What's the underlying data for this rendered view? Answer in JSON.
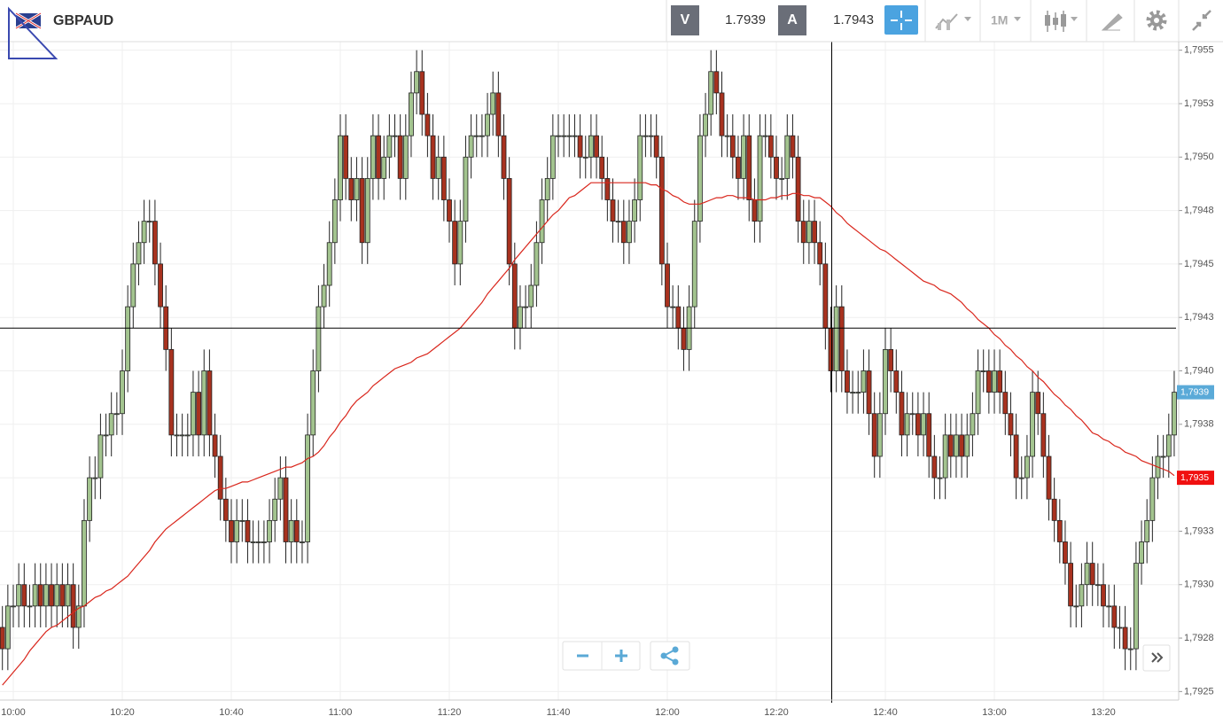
{
  "toolbar": {
    "symbol": "GBPAUD",
    "sell_label": "V",
    "sell_price": "1.7939",
    "buy_label": "A",
    "buy_price": "1.7943",
    "period": "1M"
  },
  "chart_data": {
    "type": "candlestick",
    "categories": [
      null,
      null,
      "10:00",
      null,
      null,
      null,
      null,
      null,
      null,
      null,
      null,
      null,
      null,
      null,
      null,
      null,
      null,
      null,
      null,
      null,
      null,
      null,
      "10:20",
      null,
      null,
      null,
      null,
      null,
      null,
      null,
      null,
      null,
      null,
      null,
      null,
      null,
      null,
      null,
      null,
      null,
      null,
      null,
      "10:40",
      null,
      null,
      null,
      null,
      null,
      null,
      null,
      null,
      null,
      null,
      null,
      null,
      null,
      null,
      null,
      null,
      null,
      null,
      null,
      "11:00",
      null,
      null,
      null,
      null,
      null,
      null,
      null,
      null,
      null,
      null,
      null,
      null,
      null,
      null,
      null,
      null,
      null,
      null,
      null,
      "11:20",
      null,
      null,
      null,
      null,
      null,
      null,
      null,
      null,
      null,
      null,
      null,
      null,
      null,
      null,
      null,
      null,
      null,
      null,
      null,
      "11:40",
      null,
      null,
      null,
      null,
      null,
      null,
      null,
      null,
      null,
      null,
      null,
      null,
      null,
      null,
      null,
      null,
      null,
      null,
      null,
      "12:00",
      null,
      null,
      null,
      null,
      null,
      null,
      null,
      null,
      null,
      null,
      null,
      null,
      null,
      null,
      null,
      null,
      null,
      null,
      null,
      "12:20",
      null,
      null,
      null,
      null,
      null,
      null,
      null,
      null,
      null,
      null,
      null,
      null,
      null,
      null,
      null,
      null,
      null,
      null,
      null,
      "12:40",
      null,
      null,
      null,
      null,
      null,
      null,
      null,
      null,
      null,
      null,
      null,
      null,
      null,
      null,
      null,
      null,
      null,
      null,
      null,
      "13:00",
      null,
      null,
      null,
      null,
      null,
      null,
      null,
      null,
      null,
      null,
      null,
      null,
      null,
      null,
      null,
      null,
      null,
      null,
      null,
      "13:20",
      null,
      null,
      null,
      null,
      null,
      null,
      null,
      null,
      null,
      null,
      null,
      null,
      null
    ],
    "open": [
      1.7928,
      1.7927,
      1.7929,
      1.7929,
      1.793,
      1.7929,
      1.7929,
      1.793,
      1.7929,
      1.793,
      1.7929,
      1.793,
      1.7929,
      1.793,
      1.7928,
      1.7929,
      1.7933,
      1.7935,
      1.7935,
      1.7937,
      1.7937,
      1.7938,
      1.7938,
      1.794,
      1.7943,
      1.7945,
      1.7946,
      1.7947,
      1.7947,
      1.7945,
      1.7943,
      1.7941,
      1.7937,
      1.7937,
      1.7937,
      1.7937,
      1.7939,
      1.7937,
      1.794,
      1.7937,
      1.7936,
      1.7934,
      1.7933,
      1.7932,
      1.7933,
      1.7933,
      1.7932,
      1.7932,
      1.7932,
      1.7932,
      1.7933,
      1.7934,
      1.7935,
      1.7932,
      1.7933,
      1.7932,
      1.7932,
      1.7937,
      1.794,
      1.7943,
      1.7944,
      1.7946,
      1.7948,
      1.7951,
      1.7949,
      1.7948,
      1.7949,
      1.7946,
      1.7949,
      1.7951,
      1.7949,
      1.795,
      1.7951,
      1.7951,
      1.7949,
      1.7951,
      1.7953,
      1.7954,
      1.7952,
      1.7951,
      1.7949,
      1.795,
      1.7948,
      1.7947,
      1.7945,
      1.7947,
      1.795,
      1.7951,
      1.7951,
      1.7951,
      1.7952,
      1.7953,
      1.7951,
      1.7949,
      1.7945,
      1.7942,
      1.7943,
      1.7943,
      1.7944,
      1.7946,
      1.7948,
      1.7949,
      1.7951,
      1.7951,
      1.7951,
      1.7951,
      1.7951,
      1.795,
      1.795,
      1.7951,
      1.795,
      1.7949,
      1.7948,
      1.7947,
      1.7947,
      1.7946,
      1.7947,
      1.7948,
      1.7951,
      1.7951,
      1.7951,
      1.795,
      1.7945,
      1.7943,
      1.7943,
      1.7942,
      1.7941,
      1.7943,
      1.7947,
      1.7951,
      1.7952,
      1.7954,
      1.7953,
      1.7951,
      1.7951,
      1.795,
      1.7949,
      1.7951,
      1.7948,
      1.7947,
      1.7951,
      1.7951,
      1.795,
      1.7949,
      1.7949,
      1.7951,
      1.795,
      1.7947,
      1.7946,
      1.7947,
      1.7946,
      1.7945,
      1.7942,
      1.794,
      1.7943,
      1.794,
      1.7939,
      1.7939,
      1.7939,
      1.794,
      1.7938,
      1.7936,
      1.7938,
      1.7941,
      1.794,
      1.7939,
      1.7937,
      1.7938,
      1.7938,
      1.7937,
      1.7938,
      1.7936,
      1.7935,
      1.7935,
      1.7937,
      1.7936,
      1.7937,
      1.7936,
      1.7937,
      1.7938,
      1.794,
      1.794,
      1.7939,
      1.794,
      1.7939,
      1.7938,
      1.7937,
      1.7935,
      1.7935,
      1.7936,
      1.7939,
      1.7938,
      1.7936,
      1.7934,
      1.7933,
      1.7932,
      1.7931,
      1.7929,
      1.7929,
      1.793,
      1.7931,
      1.793,
      1.793,
      1.7929,
      1.7929,
      1.7928,
      1.7928,
      1.7927,
      1.7927,
      1.7931,
      1.7932,
      1.7933,
      1.7935,
      1.7936,
      1.7936,
      1.7937
    ],
    "high": [
      1.7929,
      1.793,
      1.793,
      1.7931,
      1.7931,
      1.793,
      1.7931,
      1.7931,
      1.7931,
      1.7931,
      1.7931,
      1.7931,
      1.7931,
      1.7931,
      1.793,
      1.7934,
      1.7936,
      1.7936,
      1.7938,
      1.7938,
      1.7939,
      1.7939,
      1.7941,
      1.7944,
      1.7946,
      1.7947,
      1.7948,
      1.7948,
      1.7948,
      1.7946,
      1.7944,
      1.7942,
      1.7938,
      1.7938,
      1.7938,
      1.794,
      1.794,
      1.7941,
      1.7941,
      1.7938,
      1.7937,
      1.7935,
      1.7934,
      1.7934,
      1.7934,
      1.7934,
      1.7933,
      1.7933,
      1.7933,
      1.7934,
      1.7935,
      1.7936,
      1.7936,
      1.7934,
      1.7934,
      1.7933,
      1.7938,
      1.7941,
      1.7944,
      1.7945,
      1.7947,
      1.7949,
      1.7952,
      1.7952,
      1.795,
      1.795,
      1.795,
      1.795,
      1.7952,
      1.7952,
      1.7951,
      1.7952,
      1.7952,
      1.7952,
      1.7952,
      1.7954,
      1.7955,
      1.7955,
      1.7953,
      1.7952,
      1.7951,
      1.7951,
      1.7949,
      1.7948,
      1.7948,
      1.7951,
      1.7952,
      1.7952,
      1.7952,
      1.7953,
      1.7954,
      1.7954,
      1.7952,
      1.795,
      1.7946,
      1.7944,
      1.7944,
      1.7945,
      1.7947,
      1.7949,
      1.795,
      1.7952,
      1.7952,
      1.7952,
      1.7952,
      1.7952,
      1.7952,
      1.7951,
      1.7952,
      1.7952,
      1.7951,
      1.795,
      1.7949,
      1.7948,
      1.7948,
      1.7948,
      1.7949,
      1.7952,
      1.7952,
      1.7952,
      1.7952,
      1.7951,
      1.7946,
      1.7944,
      1.7944,
      1.7943,
      1.7944,
      1.7948,
      1.7952,
      1.7953,
      1.7955,
      1.7955,
      1.7954,
      1.7952,
      1.7952,
      1.7951,
      1.7952,
      1.7952,
      1.7949,
      1.7952,
      1.7952,
      1.7952,
      1.7951,
      1.795,
      1.7952,
      1.7952,
      1.7951,
      1.7948,
      1.7948,
      1.7948,
      1.7947,
      1.7946,
      1.7943,
      1.7944,
      1.7944,
      1.7941,
      1.794,
      1.794,
      1.7941,
      1.7941,
      1.7939,
      1.7939,
      1.7942,
      1.7942,
      1.7941,
      1.794,
      1.7939,
      1.7939,
      1.7939,
      1.7939,
      1.7939,
      1.7937,
      1.7936,
      1.7938,
      1.7938,
      1.7938,
      1.7938,
      1.7938,
      1.7939,
      1.7941,
      1.7941,
      1.7941,
      1.7941,
      1.7941,
      1.794,
      1.7939,
      1.7938,
      1.7936,
      1.7937,
      1.794,
      1.794,
      1.7939,
      1.7937,
      1.7935,
      1.7934,
      1.7933,
      1.7932,
      1.793,
      1.7931,
      1.7932,
      1.7932,
      1.7931,
      1.7931,
      1.793,
      1.793,
      1.7929,
      1.7929,
      1.7928,
      1.7932,
      1.7933,
      1.7934,
      1.7936,
      1.7937,
      1.7937,
      1.7938,
      1.794
    ],
    "low": [
      1.7926,
      1.7926,
      1.7928,
      1.7928,
      1.7928,
      1.7928,
      1.7928,
      1.7928,
      1.7928,
      1.7928,
      1.7928,
      1.7928,
      1.7928,
      1.7927,
      1.7927,
      1.7928,
      1.7932,
      1.7934,
      1.7934,
      1.7936,
      1.7936,
      1.7937,
      1.7937,
      1.7939,
      1.7942,
      1.7944,
      1.7945,
      1.7946,
      1.7944,
      1.7942,
      1.794,
      1.7936,
      1.7936,
      1.7936,
      1.7936,
      1.7936,
      1.7936,
      1.7936,
      1.7936,
      1.7935,
      1.7933,
      1.7932,
      1.7931,
      1.7931,
      1.7932,
      1.7931,
      1.7931,
      1.7931,
      1.7931,
      1.7931,
      1.7932,
      1.7933,
      1.7931,
      1.7931,
      1.7931,
      1.7931,
      1.7931,
      1.7936,
      1.7939,
      1.7942,
      1.7943,
      1.7945,
      1.7947,
      1.7948,
      1.7947,
      1.7947,
      1.7945,
      1.7945,
      1.7948,
      1.7948,
      1.7948,
      1.7949,
      1.795,
      1.7948,
      1.7948,
      1.795,
      1.7952,
      1.7951,
      1.795,
      1.7948,
      1.7948,
      1.7947,
      1.7946,
      1.7944,
      1.7944,
      1.7946,
      1.7949,
      1.795,
      1.795,
      1.795,
      1.7951,
      1.795,
      1.7948,
      1.7944,
      1.7941,
      1.7941,
      1.7942,
      1.7942,
      1.7943,
      1.7945,
      1.7947,
      1.7948,
      1.795,
      1.795,
      1.795,
      1.795,
      1.7949,
      1.7949,
      1.7949,
      1.7949,
      1.7948,
      1.7947,
      1.7946,
      1.7946,
      1.7945,
      1.7945,
      1.7946,
      1.7947,
      1.795,
      1.795,
      1.7949,
      1.7944,
      1.7942,
      1.7942,
      1.7941,
      1.794,
      1.794,
      1.7942,
      1.7946,
      1.795,
      1.7951,
      1.7952,
      1.795,
      1.795,
      1.7949,
      1.7948,
      1.7948,
      1.7947,
      1.7946,
      1.7946,
      1.795,
      1.7949,
      1.7948,
      1.7948,
      1.7948,
      1.7949,
      1.7946,
      1.7945,
      1.7945,
      1.7945,
      1.7944,
      1.7941,
      1.7939,
      1.7939,
      1.7939,
      1.7938,
      1.7938,
      1.7938,
      1.7938,
      1.7937,
      1.7935,
      1.7935,
      1.7937,
      1.7939,
      1.7938,
      1.7936,
      1.7936,
      1.7937,
      1.7936,
      1.7936,
      1.7935,
      1.7934,
      1.7934,
      1.7934,
      1.7935,
      1.7935,
      1.7935,
      1.7935,
      1.7936,
      1.7937,
      1.7939,
      1.7938,
      1.7938,
      1.7938,
      1.7937,
      1.7936,
      1.7934,
      1.7934,
      1.7934,
      1.7935,
      1.7937,
      1.7935,
      1.7933,
      1.7932,
      1.7931,
      1.793,
      1.7928,
      1.7928,
      1.7928,
      1.7929,
      1.7929,
      1.7929,
      1.7928,
      1.7928,
      1.7927,
      1.7927,
      1.7926,
      1.7926,
      1.7926,
      1.793,
      1.7931,
      1.7932,
      1.7934,
      1.7935,
      1.7935,
      1.7936
    ],
    "close": [
      1.7927,
      1.7929,
      1.7929,
      1.793,
      1.7929,
      1.7929,
      1.793,
      1.7929,
      1.793,
      1.7929,
      1.793,
      1.7929,
      1.793,
      1.7928,
      1.7929,
      1.7933,
      1.7935,
      1.7935,
      1.7937,
      1.7937,
      1.7938,
      1.7938,
      1.794,
      1.7943,
      1.7945,
      1.7946,
      1.7947,
      1.7947,
      1.7945,
      1.7943,
      1.7941,
      1.7937,
      1.7937,
      1.7937,
      1.7937,
      1.7939,
      1.7937,
      1.794,
      1.7937,
      1.7936,
      1.7934,
      1.7933,
      1.7932,
      1.7933,
      1.7933,
      1.7932,
      1.7932,
      1.7932,
      1.7932,
      1.7933,
      1.7934,
      1.7935,
      1.7932,
      1.7933,
      1.7932,
      1.7932,
      1.7937,
      1.794,
      1.7943,
      1.7944,
      1.7946,
      1.7948,
      1.7951,
      1.7949,
      1.7948,
      1.7949,
      1.7946,
      1.7949,
      1.7951,
      1.7949,
      1.795,
      1.7951,
      1.7951,
      1.7949,
      1.7951,
      1.7953,
      1.7954,
      1.7952,
      1.7951,
      1.7949,
      1.795,
      1.7948,
      1.7947,
      1.7945,
      1.7947,
      1.795,
      1.7951,
      1.7951,
      1.7951,
      1.7952,
      1.7953,
      1.7951,
      1.7949,
      1.7945,
      1.7942,
      1.7943,
      1.7943,
      1.7944,
      1.7946,
      1.7948,
      1.7949,
      1.7951,
      1.7951,
      1.7951,
      1.7951,
      1.7951,
      1.795,
      1.795,
      1.7951,
      1.795,
      1.7949,
      1.7948,
      1.7947,
      1.7947,
      1.7946,
      1.7947,
      1.7948,
      1.7951,
      1.7951,
      1.7951,
      1.795,
      1.7945,
      1.7943,
      1.7943,
      1.7942,
      1.7941,
      1.7943,
      1.7947,
      1.7951,
      1.7952,
      1.7954,
      1.7953,
      1.7951,
      1.7951,
      1.795,
      1.7949,
      1.7951,
      1.7948,
      1.7947,
      1.7951,
      1.7951,
      1.795,
      1.7949,
      1.7949,
      1.7951,
      1.795,
      1.7947,
      1.7946,
      1.7947,
      1.7946,
      1.7945,
      1.7942,
      1.794,
      1.7943,
      1.794,
      1.7939,
      1.7939,
      1.7939,
      1.794,
      1.7938,
      1.7936,
      1.7938,
      1.7941,
      1.794,
      1.7939,
      1.7937,
      1.7938,
      1.7938,
      1.7937,
      1.7938,
      1.7936,
      1.7935,
      1.7935,
      1.7937,
      1.7936,
      1.7937,
      1.7936,
      1.7937,
      1.7938,
      1.794,
      1.794,
      1.7939,
      1.794,
      1.7939,
      1.7938,
      1.7937,
      1.7935,
      1.7935,
      1.7936,
      1.7939,
      1.7938,
      1.7936,
      1.7934,
      1.7933,
      1.7932,
      1.7931,
      1.7929,
      1.7929,
      1.793,
      1.7931,
      1.793,
      1.793,
      1.7929,
      1.7929,
      1.7928,
      1.7928,
      1.7927,
      1.7927,
      1.7931,
      1.7932,
      1.7933,
      1.7935,
      1.7936,
      1.7936,
      1.7937,
      1.7939
    ],
    "up_color": "#a3c48f",
    "down_color": "#a8321f",
    "ma": {
      "color": "#d9261c",
      "values": [
        1.79253,
        1.79256,
        1.79259,
        1.79262,
        1.79265,
        1.79269,
        1.79272,
        1.79275,
        1.79278,
        1.7928,
        1.79281,
        1.79283,
        1.79285,
        1.79287,
        1.79289,
        1.7929,
        1.79292,
        1.79294,
        1.79295,
        1.79297,
        1.79298,
        1.793,
        1.79302,
        1.79304,
        1.79307,
        1.7931,
        1.79313,
        1.79316,
        1.7932,
        1.79323,
        1.79326,
        1.79328,
        1.7933,
        1.79332,
        1.79334,
        1.79336,
        1.79338,
        1.7934,
        1.79342,
        1.79344,
        1.79345,
        1.79345,
        1.79346,
        1.79347,
        1.79348,
        1.79348,
        1.79349,
        1.7935,
        1.79351,
        1.79352,
        1.79353,
        1.79354,
        1.79355,
        1.79355,
        1.79356,
        1.79357,
        1.79359,
        1.7936,
        1.79362,
        1.79365,
        1.79369,
        1.79372,
        1.79376,
        1.79379,
        1.79383,
        1.79386,
        1.79388,
        1.7939,
        1.79393,
        1.79395,
        1.79397,
        1.79399,
        1.79401,
        1.79402,
        1.79403,
        1.79404,
        1.79406,
        1.79407,
        1.79408,
        1.7941,
        1.79412,
        1.79414,
        1.79416,
        1.79418,
        1.7942,
        1.79423,
        1.79426,
        1.79429,
        1.79432,
        1.79436,
        1.79439,
        1.79442,
        1.79445,
        1.79448,
        1.79452,
        1.79455,
        1.79458,
        1.79461,
        1.79464,
        1.79467,
        1.7947,
        1.79473,
        1.79475,
        1.79478,
        1.79481,
        1.79482,
        1.79484,
        1.79486,
        1.79488,
        1.79488,
        1.79488,
        1.79488,
        1.79488,
        1.79488,
        1.79488,
        1.79488,
        1.79488,
        1.79488,
        1.79488,
        1.79487,
        1.79487,
        1.79485,
        1.79484,
        1.79482,
        1.79481,
        1.79479,
        1.79478,
        1.79478,
        1.79478,
        1.79479,
        1.7948,
        1.79481,
        1.79481,
        1.79482,
        1.79482,
        1.79481,
        1.79481,
        1.79481,
        1.7948,
        1.7948,
        1.7948,
        1.79481,
        1.79481,
        1.79482,
        1.79482,
        1.79483,
        1.79483,
        1.79482,
        1.79482,
        1.79481,
        1.79481,
        1.79479,
        1.79477,
        1.79474,
        1.79472,
        1.79469,
        1.79467,
        1.79465,
        1.79463,
        1.79461,
        1.79459,
        1.79457,
        1.79456,
        1.79454,
        1.79452,
        1.7945,
        1.79448,
        1.79446,
        1.79444,
        1.79442,
        1.79441,
        1.7944,
        1.79438,
        1.79437,
        1.79436,
        1.79434,
        1.79432,
        1.79429,
        1.79427,
        1.79424,
        1.79422,
        1.7942,
        1.79417,
        1.79415,
        1.79412,
        1.7941,
        1.79407,
        1.79405,
        1.79402,
        1.794,
        1.79397,
        1.79395,
        1.79392,
        1.79389,
        1.79387,
        1.79384,
        1.79382,
        1.79379,
        1.79377,
        1.79374,
        1.79371,
        1.7937,
        1.79368,
        1.79367,
        1.79365,
        1.79364,
        1.79362,
        1.79361,
        1.7936,
        1.79358,
        1.79357,
        1.79356,
        1.79355,
        1.79354,
        1.79353,
        1.79351
      ]
    },
    "ylim": [
      1.79246,
      1.79554
    ],
    "yticks": [
      {
        "value": 1.7925,
        "label": "1,7925"
      },
      {
        "value": 1.79275,
        "label": "1,7928"
      },
      {
        "value": 1.793,
        "label": "1,7930"
      },
      {
        "value": 1.79325,
        "label": "1,7933"
      },
      {
        "value": 1.7935,
        "label": "1,7935"
      },
      {
        "value": 1.79375,
        "label": "1,7938"
      },
      {
        "value": 1.794,
        "label": "1,7940"
      },
      {
        "value": 1.79425,
        "label": "1,7943"
      },
      {
        "value": 1.7945,
        "label": "1,7945"
      },
      {
        "value": 1.79475,
        "label": "1,7948"
      },
      {
        "value": 1.795,
        "label": "1,7950"
      },
      {
        "value": 1.79525,
        "label": "1,7953"
      },
      {
        "value": 1.7955,
        "label": "1,7955"
      }
    ],
    "grid": true,
    "crosshair_price": 1.7942,
    "price_labels": [
      {
        "value": 1.7939,
        "label": "1,7939",
        "color": "#5aaad8"
      },
      {
        "value": 1.7935,
        "label": "1,7935",
        "color": "#f01010"
      }
    ]
  }
}
